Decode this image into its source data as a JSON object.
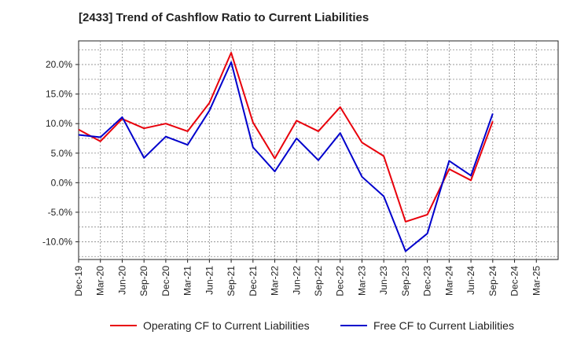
{
  "chart_data": {
    "type": "line",
    "title": "[2433]  Trend of Cashflow Ratio to Current Liabilities",
    "x": [
      "Dec-19",
      "Mar-20",
      "Jun-20",
      "Sep-20",
      "Dec-20",
      "Mar-21",
      "Jun-21",
      "Sep-21",
      "Dec-21",
      "Mar-22",
      "Jun-22",
      "Sep-22",
      "Dec-22",
      "Mar-23",
      "Jun-23",
      "Sep-23",
      "Dec-23",
      "Mar-24",
      "Jun-24",
      "Sep-24",
      "Dec-24",
      "Mar-25"
    ],
    "ylim": [
      -13,
      24
    ],
    "yticks": [
      -10,
      -5,
      0,
      5,
      10,
      15,
      20
    ],
    "ytick_labels": [
      "-10.0%",
      "-5.0%",
      "0.0%",
      "5.0%",
      "10.0%",
      "15.0%",
      "20.0%"
    ],
    "grid": true,
    "legend_position": "bottom",
    "series": [
      {
        "name": "Operating CF to Current Liabilities",
        "color": "#e8000b",
        "values": [
          9.0,
          7.0,
          10.8,
          9.2,
          10.0,
          8.7,
          13.5,
          22.0,
          10.2,
          4.1,
          10.5,
          8.7,
          12.8,
          6.8,
          4.5,
          -6.6,
          -5.4,
          2.3,
          0.4,
          10.4,
          null,
          null
        ]
      },
      {
        "name": "Free CF to Current Liabilities",
        "color": "#0000cc",
        "values": [
          8.1,
          7.7,
          11.1,
          4.2,
          7.8,
          6.4,
          12.2,
          20.4,
          6.0,
          1.9,
          7.5,
          3.8,
          8.4,
          1.0,
          -2.3,
          -11.6,
          -8.6,
          3.7,
          1.2,
          11.7,
          null,
          null
        ]
      }
    ]
  }
}
